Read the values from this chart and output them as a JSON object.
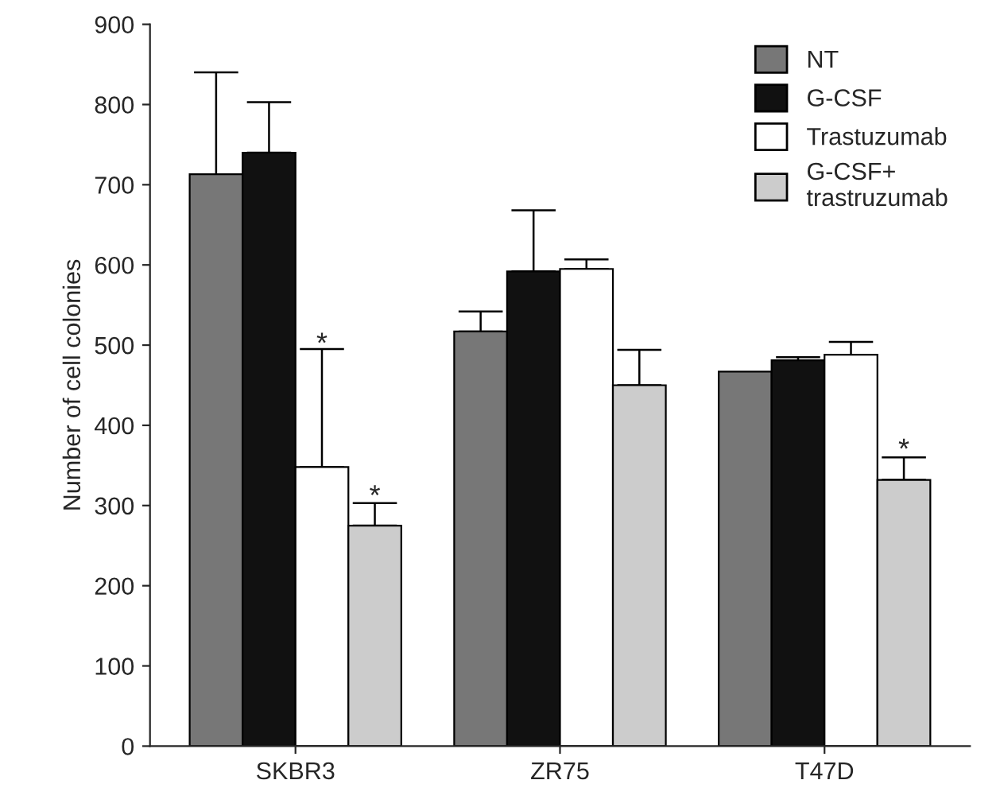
{
  "chart_data": {
    "type": "bar",
    "ylabel": "Number of cell colonies",
    "categories": [
      "SKBR3",
      "ZR75",
      "T47D"
    ],
    "series": [
      {
        "name": "NT",
        "color": "#777777",
        "values": [
          713,
          517,
          467
        ],
        "errors": [
          [
            713,
            840
          ],
          [
            517,
            542
          ],
          null
        ]
      },
      {
        "name": "G-CSF",
        "color": "#111111",
        "values": [
          740,
          592,
          481
        ],
        "errors": [
          [
            740,
            803
          ],
          [
            592,
            668
          ],
          [
            481,
            485
          ]
        ]
      },
      {
        "name": "Trastuzumab",
        "color": "#ffffff",
        "values": [
          348,
          595,
          488
        ],
        "errors": [
          [
            348,
            495
          ],
          [
            595,
            607
          ],
          [
            488,
            504
          ]
        ]
      },
      {
        "name": "G-CSF+\ntrastruzumab",
        "color": "#cccccc",
        "values": [
          275,
          450,
          332
        ],
        "errors": [
          [
            275,
            303
          ],
          [
            450,
            494
          ],
          [
            332,
            360
          ]
        ]
      }
    ],
    "annotations": [
      {
        "text": "*",
        "x": "SKBR3",
        "y": 500
      },
      {
        "text": "*",
        "x": "SKBR3",
        "y": 310
      },
      {
        "text": "*",
        "x": "T47D",
        "y": 368
      }
    ],
    "ylim": [
      0,
      900
    ],
    "yticks": [
      0,
      100,
      200,
      300,
      400,
      500,
      600,
      700,
      800,
      900
    ],
    "legend": "top right",
    "grid": false
  }
}
